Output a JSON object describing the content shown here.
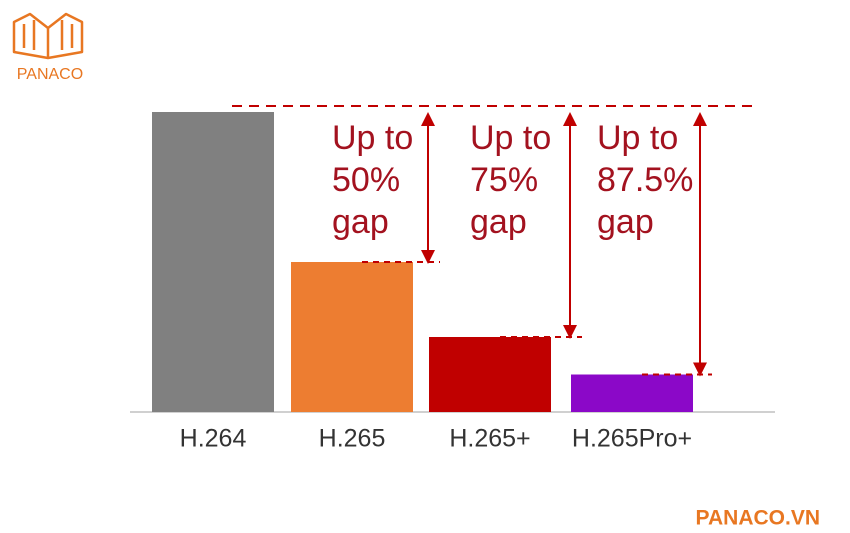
{
  "brand": {
    "logo_text": "PANACO",
    "site": "PANACO.VN"
  },
  "chart_data": {
    "type": "bar",
    "categories": [
      "H.264",
      "H.265",
      "H.265+",
      "H.265Pro+"
    ],
    "values": [
      100,
      50,
      25,
      12.5
    ],
    "colors": [
      "#808080",
      "#ed7d31",
      "#c00000",
      "#8b08c8"
    ],
    "annotations": [
      {
        "lines": [
          "Up to",
          "50%",
          "gap"
        ]
      },
      {
        "lines": [
          "Up to",
          "75%",
          "gap"
        ]
      },
      {
        "lines": [
          "Up to",
          "87.5%",
          "gap"
        ]
      }
    ]
  }
}
